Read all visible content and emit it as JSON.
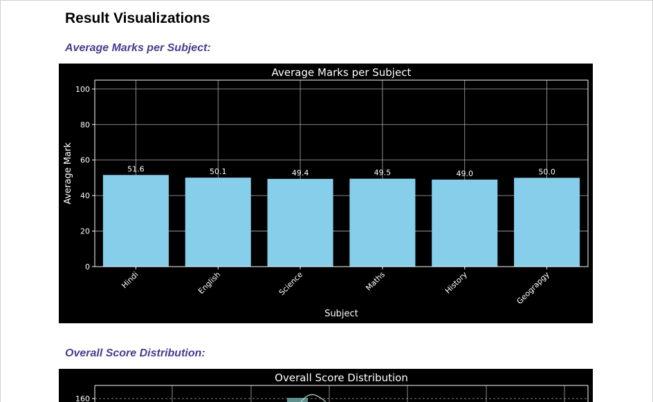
{
  "page": {
    "title": "Result Visualizations"
  },
  "sections": [
    {
      "heading": "Average Marks per Subject:"
    },
    {
      "heading": "Overall Score Distribution:"
    }
  ],
  "chart_data": [
    {
      "type": "bar",
      "title": "Average Marks per Subject",
      "xlabel": "Subject",
      "ylabel": "Average Mark",
      "categories": [
        "Hindi",
        "English",
        "Science",
        "Maths",
        "History",
        "Geograpgy"
      ],
      "values": [
        51.6,
        50.1,
        49.4,
        49.5,
        49.0,
        50.0
      ],
      "value_labels": [
        "51.6",
        "50.1",
        "49.4",
        "49.5",
        "49.0",
        "50.0"
      ],
      "ylim": [
        0,
        105
      ],
      "yticks": [
        0,
        20,
        40,
        60,
        80,
        100
      ],
      "grid": true,
      "bar_color": "#87ceeb",
      "background": "#000000"
    },
    {
      "type": "bar",
      "title": "Overall Score Distribution",
      "yticks_visible": [
        160
      ],
      "grid": true,
      "background": "#000000"
    }
  ]
}
